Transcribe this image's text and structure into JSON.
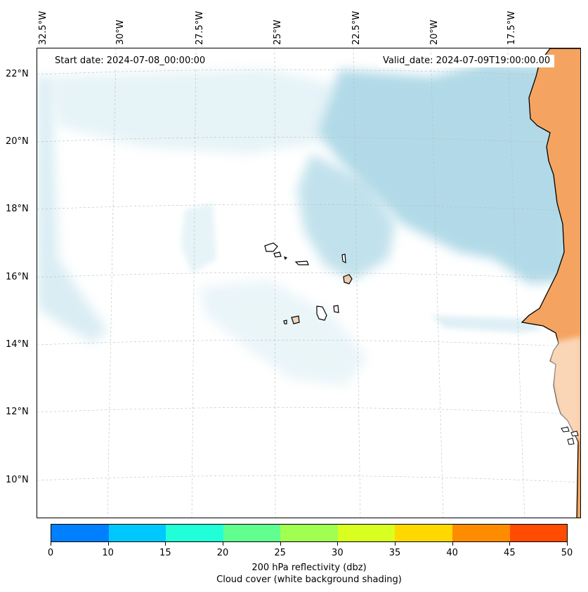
{
  "map": {
    "start_date": "Start date: 2024-07-08_00:00:00",
    "valid_date": "Valid_date: 2024-07-09T19:00:00.00",
    "lon_labels": [
      "32.5°W",
      "30°W",
      "27.5°W",
      "25°W",
      "22.5°W",
      "20°W",
      "17.5°W"
    ],
    "lat_labels": [
      "22°N",
      "20°N",
      "18°N",
      "16°N",
      "14°N",
      "12°N",
      "10°N"
    ],
    "colors": {
      "land": "#f4a460",
      "cloud": "#add8e6",
      "coastline": "#000000",
      "grid": "#bbbbbb"
    }
  },
  "colorbar": {
    "ticks": [
      "0",
      "10",
      "15",
      "20",
      "25",
      "30",
      "35",
      "40",
      "45",
      "50"
    ],
    "colors": [
      "#0080ff",
      "#00c8ff",
      "#20ffd8",
      "#60ff90",
      "#a0ff50",
      "#d8ff20",
      "#ffd800",
      "#ff8c00",
      "#ff4c00"
    ],
    "label_line1": "200 hPa reflectivity (dbz)",
    "label_line2": "Cloud cover (white background shading)"
  }
}
